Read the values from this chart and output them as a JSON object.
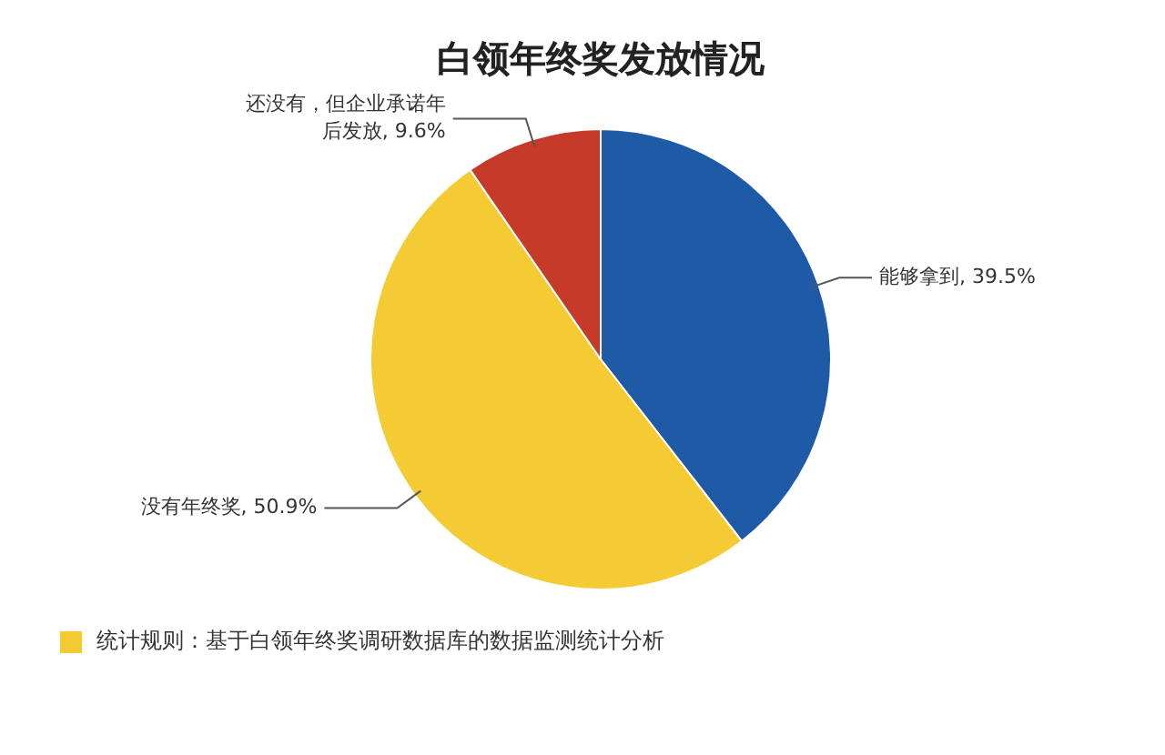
{
  "chart_data": {
    "type": "pie",
    "title": "白领年终奖发放情况",
    "categories": [
      "能够拿到",
      "没有年终奖",
      "还没有，但企业承诺年后发放"
    ],
    "values": [
      39.5,
      50.9,
      9.6
    ],
    "value_labels": [
      "39.5%",
      "50.9%",
      "9.6%"
    ],
    "colors": [
      "#1f5aa6",
      "#f4cb32",
      "#c63a2a"
    ],
    "legend": false,
    "annotations": [
      "统计规则：基于白领年终奖调研数据库的数据监测统计分析"
    ]
  }
}
